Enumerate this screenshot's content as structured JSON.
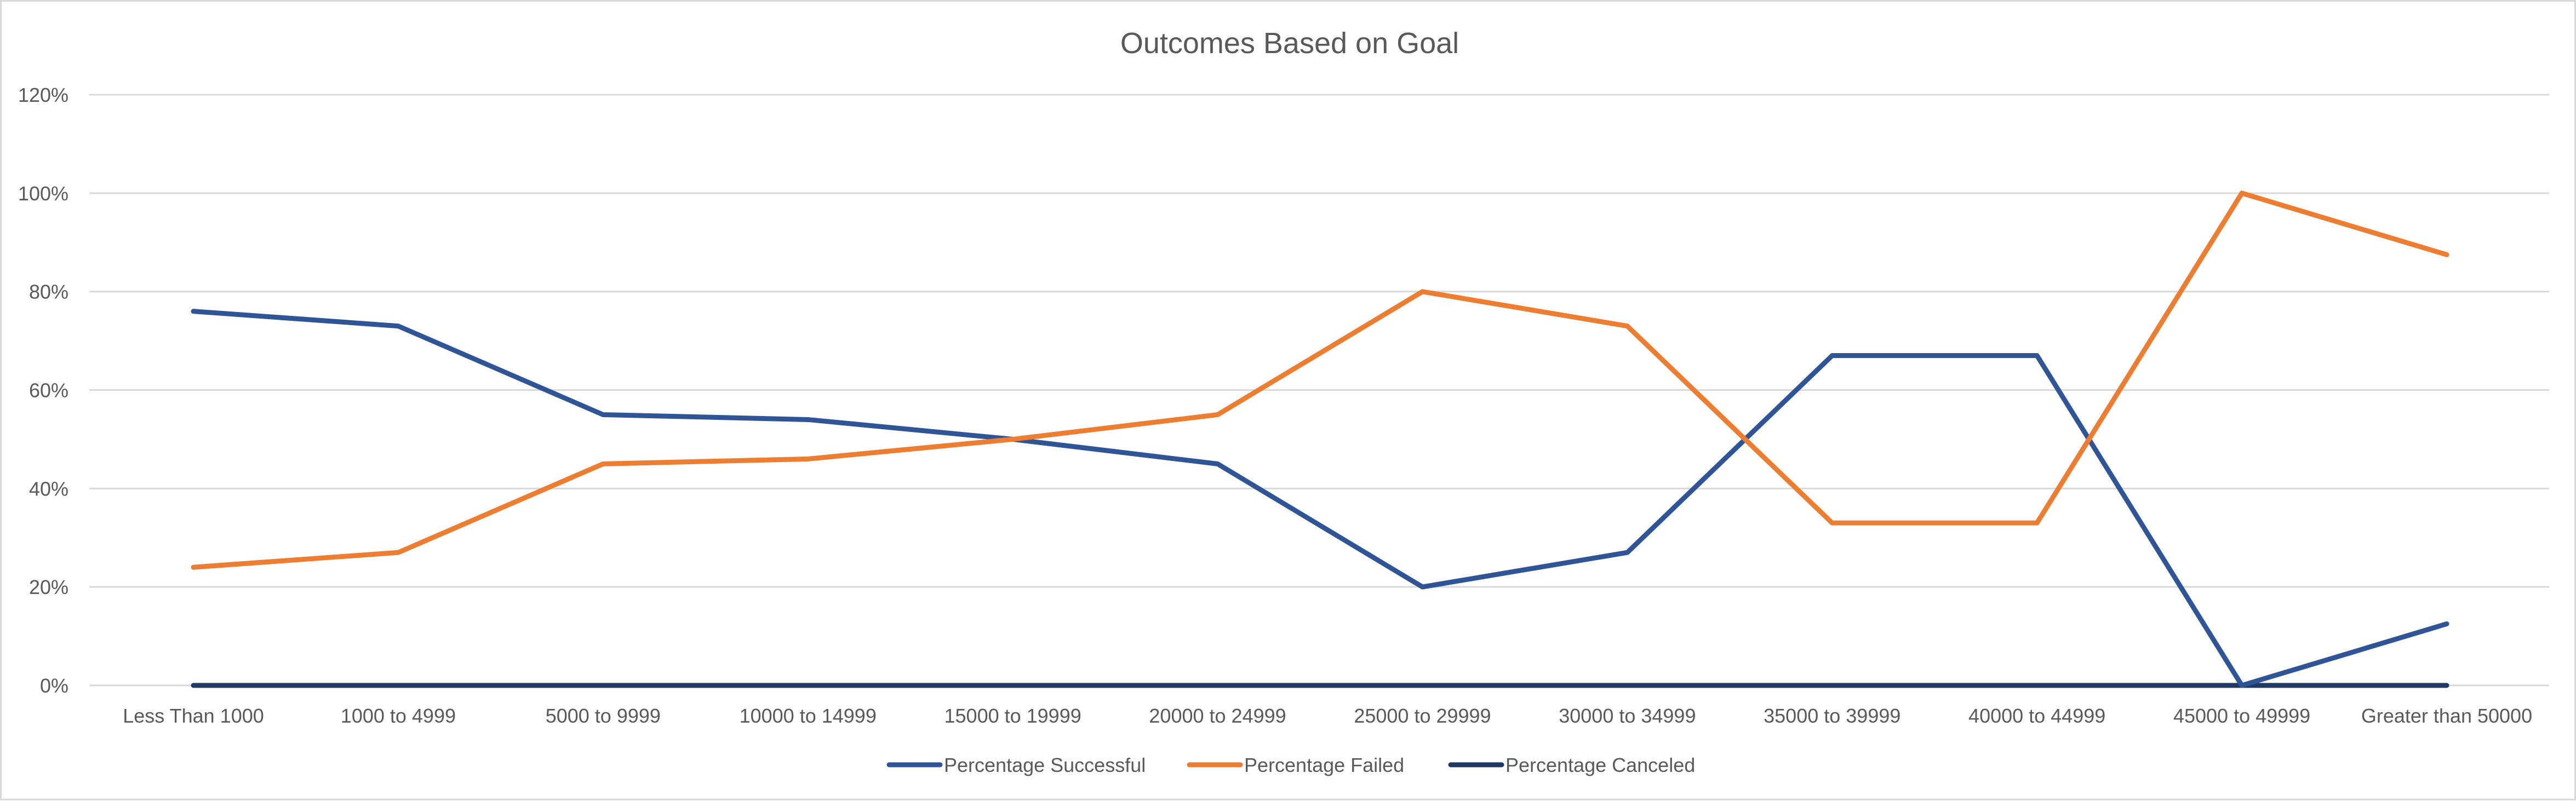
{
  "chart_data": {
    "type": "line",
    "title": "Outcomes Based on Goal",
    "xlabel": "",
    "ylabel": "",
    "ylim": [
      0,
      1.2
    ],
    "y_ticks": [
      0,
      0.2,
      0.4,
      0.6,
      0.8,
      1.0,
      1.2
    ],
    "y_tick_labels": [
      "0%",
      "20%",
      "40%",
      "60%",
      "80%",
      "100%",
      "120%"
    ],
    "grid": true,
    "legend_position": "bottom",
    "categories": [
      "Less Than 1000",
      "1000 to 4999",
      "5000 to 9999",
      "10000 to 14999",
      "15000 to 19999",
      "20000 to 24999",
      "25000 to 29999",
      "30000 to 34999",
      "35000 to 39999",
      "40000 to 44999",
      "45000 to 49999",
      "Greater than 50000"
    ],
    "series": [
      {
        "name": "Percentage Successful",
        "color": "#2f5597",
        "values": [
          0.76,
          0.73,
          0.55,
          0.54,
          0.5,
          0.45,
          0.2,
          0.27,
          0.67,
          0.67,
          0.0,
          0.125
        ]
      },
      {
        "name": "Percentage Failed",
        "color": "#ed7d31",
        "values": [
          0.24,
          0.27,
          0.45,
          0.46,
          0.5,
          0.55,
          0.8,
          0.73,
          0.33,
          0.33,
          1.0,
          0.875
        ]
      },
      {
        "name": "Percentage Canceled",
        "color": "#203864",
        "values": [
          0,
          0,
          0,
          0,
          0,
          0,
          0,
          0,
          0,
          0,
          0,
          0
        ]
      }
    ]
  }
}
